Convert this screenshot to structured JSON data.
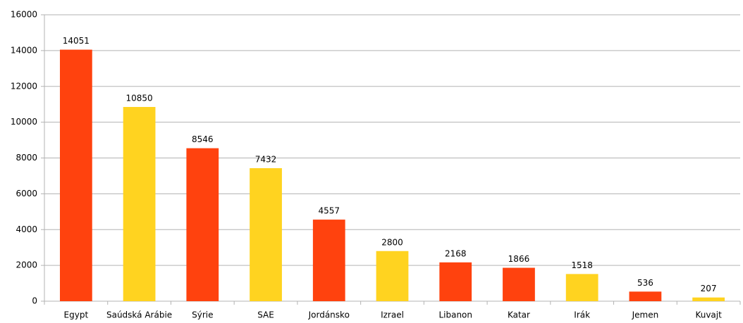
{
  "chart_data": {
    "type": "bar",
    "categories": [
      "Egypt",
      "Saúdská Arábie",
      "Sýrie",
      "SAE",
      "Jordánsko",
      "Izrael",
      "Libanon",
      "Katar",
      "Irák",
      "Jemen",
      "Kuvajt"
    ],
    "values": [
      14051,
      10850,
      8546,
      7432,
      4557,
      2800,
      2168,
      1866,
      1518,
      536,
      207
    ],
    "colors": [
      "#ff420e",
      "#ffd320",
      "#ff420e",
      "#ffd320",
      "#ff420e",
      "#ffd320",
      "#ff420e",
      "#ff420e",
      "#ffd320",
      "#ff420e",
      "#ffd320"
    ],
    "ylim": [
      0,
      16000
    ],
    "yticks": [
      0,
      2000,
      4000,
      6000,
      8000,
      10000,
      12000,
      14000,
      16000
    ],
    "grid": true
  }
}
